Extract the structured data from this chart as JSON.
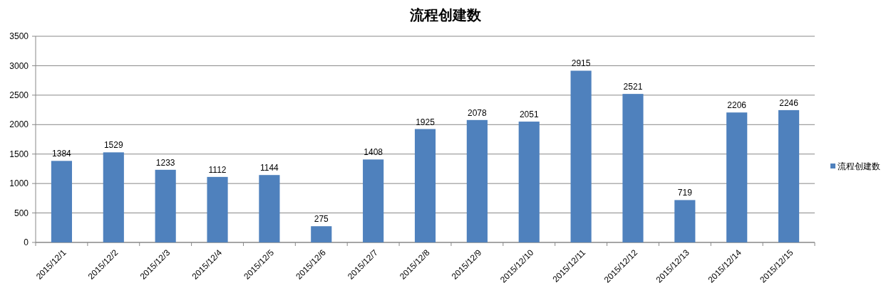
{
  "chart_data": {
    "type": "bar",
    "title": "流程创建数",
    "categories": [
      "2015/12/1",
      "2015/12/2",
      "2015/12/3",
      "2015/12/4",
      "2015/12/5",
      "2015/12/6",
      "2015/12/7",
      "2015/12/8",
      "2015/12/9",
      "2015/12/10",
      "2015/12/11",
      "2015/12/12",
      "2015/12/13",
      "2015/12/14",
      "2015/12/15"
    ],
    "series": [
      {
        "name": "流程创建数",
        "color": "#4f81bd",
        "values": [
          1384,
          1529,
          1233,
          1112,
          1144,
          275,
          1408,
          1925,
          2078,
          2051,
          2915,
          2521,
          719,
          2206,
          2246
        ]
      }
    ],
    "ylim": [
      0,
      3500
    ],
    "yticks": [
      0,
      500,
      1000,
      1500,
      2000,
      2500,
      3000,
      3500
    ],
    "grid": "y",
    "data_labels": true,
    "legend": "right"
  }
}
